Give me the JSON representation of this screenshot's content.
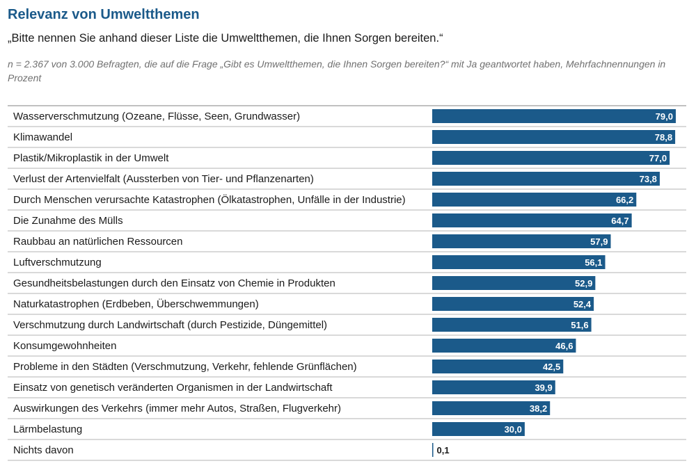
{
  "header": {
    "title": "Relevanz von Umweltthemen",
    "question": "„Bitte nennen Sie anhand dieser Liste die Umweltthemen, die Ihnen Sorgen bereiten.“",
    "note": "n = 2.367 von 3.000 Befragten, die auf die Frage „Gibt es Umweltthemen, die Ihnen Sorgen bereiten?“ mit Ja geantwortet haben, Mehrfachnennungen in Prozent"
  },
  "colors": {
    "bar": "#1b5a8a",
    "title": "#1b5a8a",
    "rule": "#9a9a9a"
  },
  "chart_data": {
    "type": "bar",
    "orientation": "horizontal",
    "title": "Relevanz von Umweltthemen",
    "categories": [
      "Wasserverschmutzung (Ozeane, Flüsse, Seen, Grundwasser)",
      "Klimawandel",
      "Plastik/Mikroplastik in der Umwelt",
      "Verlust der Artenvielfalt (Aussterben von Tier- und Pflanzenarten)",
      "Durch Menschen verursachte Katastrophen (Ölkatastrophen, Unfälle in der Industrie)",
      "Die Zunahme des Mülls",
      "Raubbau an natürlichen Ressourcen",
      "Luftverschmutzung",
      "Gesundheitsbelastungen durch den Einsatz von Chemie in Produkten",
      "Naturkatastrophen (Erdbeben, Überschwemmungen)",
      "Verschmutzung durch Landwirtschaft (durch Pestizide, Düngemittel)",
      "Konsumgewohnheiten",
      "Probleme in den Städten (Verschmutzung, Verkehr, fehlende Grünflächen)",
      "Einsatz von genetisch veränderten Organismen in der Landwirtschaft",
      "Auswirkungen des Verkehrs (immer mehr Autos, Straßen, Flugverkehr)",
      "Lärmbelastung",
      "Nichts davon"
    ],
    "values": [
      79.0,
      78.8,
      77.0,
      73.8,
      66.2,
      64.7,
      57.9,
      56.1,
      52.9,
      52.4,
      51.6,
      46.6,
      42.5,
      39.9,
      38.2,
      30.0,
      0.1
    ],
    "value_labels": [
      "79,0",
      "78,8",
      "77,0",
      "73,8",
      "66,2",
      "64,7",
      "57,9",
      "56,1",
      "52,9",
      "52,4",
      "51,6",
      "46,6",
      "42,5",
      "39,9",
      "38,2",
      "30,0",
      "0,1"
    ],
    "xlim": [
      0,
      100
    ],
    "grid": false,
    "legend": "none"
  }
}
